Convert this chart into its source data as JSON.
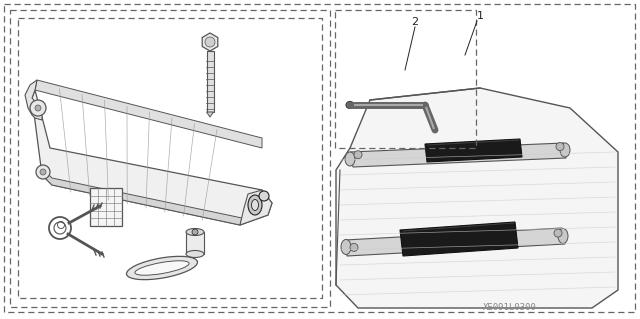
{
  "bg_color": "#ffffff",
  "lc": "#555555",
  "dc": "#222222",
  "fig_w": 6.4,
  "fig_h": 3.19,
  "dpi": 100,
  "watermark": "XE091L0300",
  "label_1": "1",
  "label_2": "2"
}
